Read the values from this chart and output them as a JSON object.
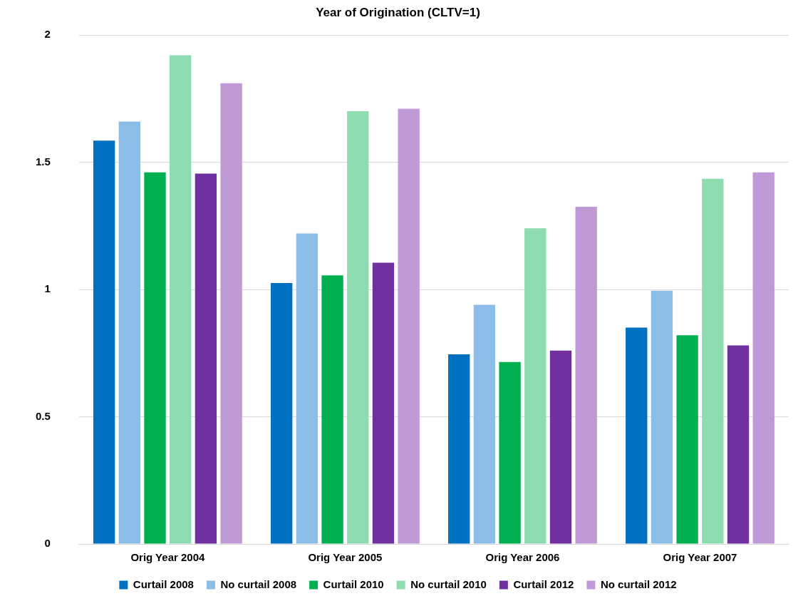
{
  "chart_data": {
    "type": "bar",
    "title": "Year of Origination (CLTV=1)",
    "categories": [
      "Orig Year 2004",
      "Orig Year 2005",
      "Orig Year 2006",
      "Orig Year 2007"
    ],
    "series": [
      {
        "name": "Curtail 2008",
        "color": "#0070c0",
        "values": [
          1.585,
          1.025,
          0.745,
          0.85
        ]
      },
      {
        "name": "No curtail 2008",
        "color": "#8cbde6",
        "values": [
          1.66,
          1.22,
          0.94,
          0.995
        ]
      },
      {
        "name": "Curtail 2010",
        "color": "#00b050",
        "values": [
          1.46,
          1.055,
          0.715,
          0.82
        ]
      },
      {
        "name": "No curtail 2010",
        "color": "#8cdcb0",
        "values": [
          1.92,
          1.7,
          1.24,
          1.435
        ]
      },
      {
        "name": "Curtail 2012",
        "color": "#7030a0",
        "values": [
          1.455,
          1.105,
          0.76,
          0.78
        ]
      },
      {
        "name": "No curtail 2012",
        "color": "#bf9ad6",
        "values": [
          1.81,
          1.71,
          1.325,
          1.46
        ]
      }
    ],
    "ylim": [
      0,
      2
    ],
    "yticks": [
      0,
      0.5,
      1,
      1.5,
      2
    ],
    "grid": "y",
    "legend": "bottom"
  }
}
